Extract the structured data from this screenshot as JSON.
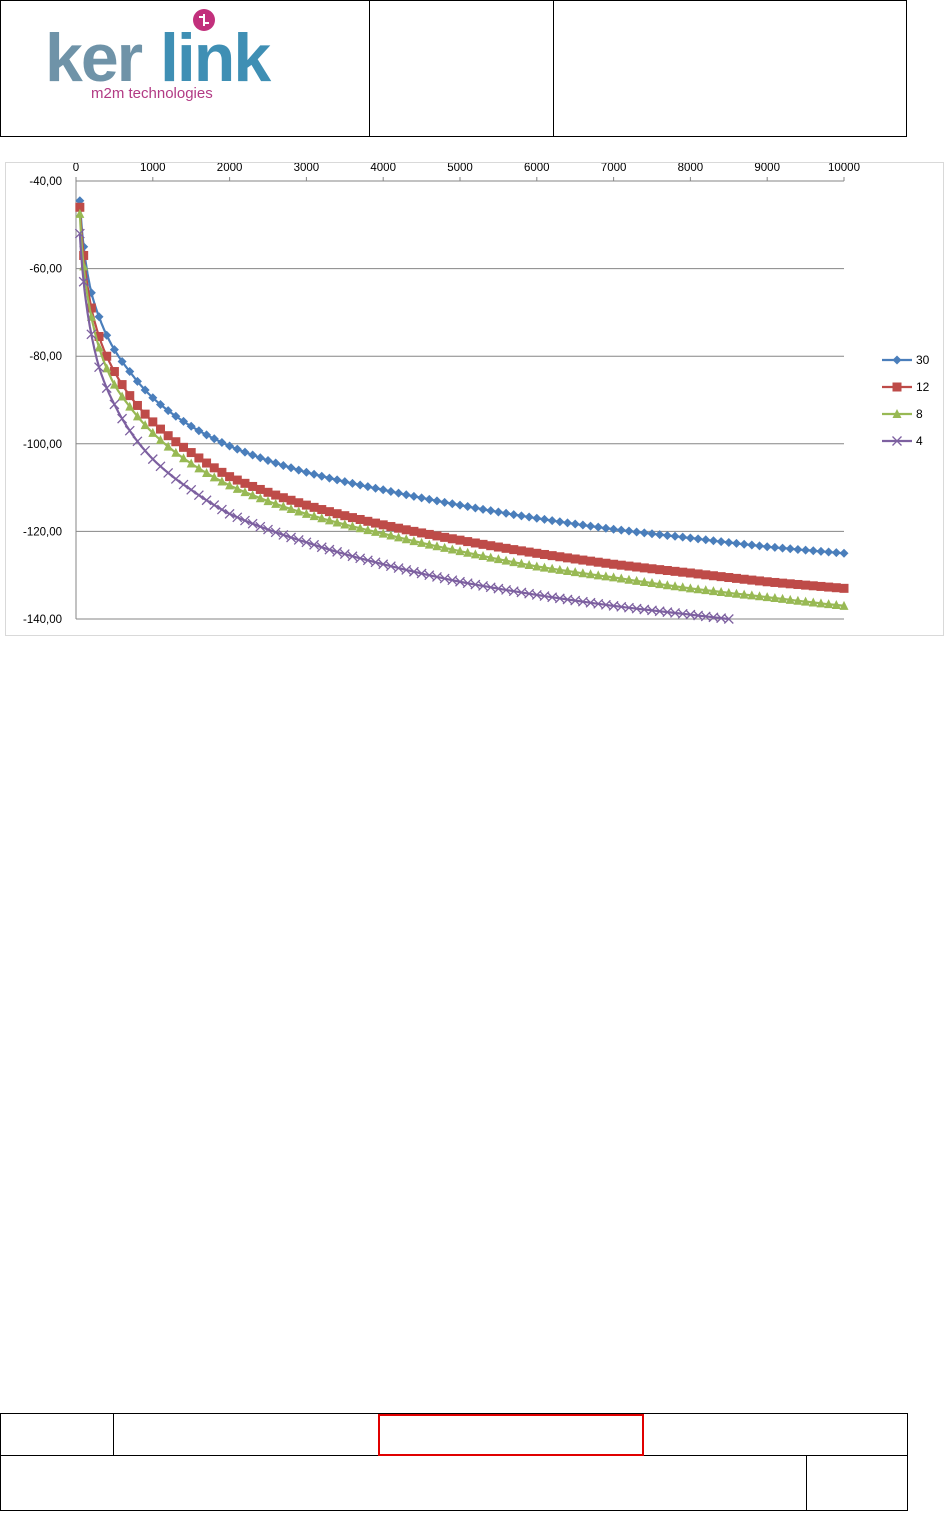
{
  "logo": {
    "brand_ker": "ker",
    "brand_link": "link",
    "tagline": "m2m technologies",
    "colors": {
      "ker": "#6f93a8",
      "link": "#4a8fb0",
      "tagline": "#b23a84",
      "mark": "#c2307c"
    }
  },
  "chart_data": {
    "type": "line",
    "x": [
      0,
      1000,
      2000,
      3000,
      4000,
      5000,
      6000,
      7000,
      8000,
      9000,
      10000
    ],
    "xticks": [
      "0",
      "1000",
      "2000",
      "3000",
      "4000",
      "5000",
      "6000",
      "7000",
      "8000",
      "9000",
      "10000"
    ],
    "yticks": [
      "-40,00",
      "-60,00",
      "-80,00",
      "-100,00",
      "-120,00",
      "-140,00"
    ],
    "xlim": [
      0,
      10000
    ],
    "ylim": [
      -140,
      -40
    ],
    "x_axis_position": "top",
    "grid": true,
    "legend_position": "right",
    "series": [
      {
        "name": "30",
        "color": "#4a7ebb",
        "marker": "diamond",
        "x": [
          50,
          100,
          200,
          300,
          500,
          700,
          1000,
          1500,
          2000,
          3000,
          4000,
          5000,
          6000,
          7000,
          8000,
          9000,
          10000
        ],
        "y": [
          -44.5,
          -55,
          -65.5,
          -71,
          -78.5,
          -83.5,
          -89.5,
          -96,
          -100.5,
          -106.5,
          -110.5,
          -114,
          -117,
          -119.5,
          -121.5,
          -123.5,
          -125
        ]
      },
      {
        "name": "12",
        "color": "#be4b48",
        "marker": "square",
        "x": [
          50,
          100,
          200,
          300,
          500,
          700,
          1000,
          1500,
          2000,
          3000,
          4000,
          5000,
          6000,
          7000,
          8000,
          9000,
          10000
        ],
        "y": [
          -46,
          -57,
          -69,
          -75.5,
          -83.5,
          -89,
          -95,
          -102,
          -107.5,
          -114,
          -118.5,
          -122,
          -125,
          -127.5,
          -129.5,
          -131.5,
          -133
        ]
      },
      {
        "name": "8",
        "color": "#98b954",
        "marker": "triangle",
        "x": [
          50,
          100,
          200,
          300,
          500,
          700,
          1000,
          1500,
          2000,
          3000,
          4000,
          5000,
          6000,
          7000,
          8000,
          9000,
          10000
        ],
        "y": [
          -47.5,
          -59.5,
          -71,
          -78,
          -86.5,
          -91.5,
          -97.5,
          -104.5,
          -109.5,
          -116,
          -120.5,
          -124.5,
          -128,
          -130.5,
          -133,
          -135,
          -137
        ]
      },
      {
        "name": "4",
        "color": "#7d60a0",
        "marker": "x",
        "x": [
          50,
          100,
          200,
          300,
          500,
          700,
          1000,
          1500,
          2000,
          3000,
          4000,
          5000,
          6000,
          7000,
          8000,
          8500
        ],
        "y": [
          -52,
          -63,
          -75,
          -82.5,
          -91,
          -97,
          -103.5,
          -110.5,
          -116,
          -122.5,
          -127.5,
          -131.5,
          -134.5,
          -137,
          -139,
          -140
        ]
      }
    ]
  }
}
